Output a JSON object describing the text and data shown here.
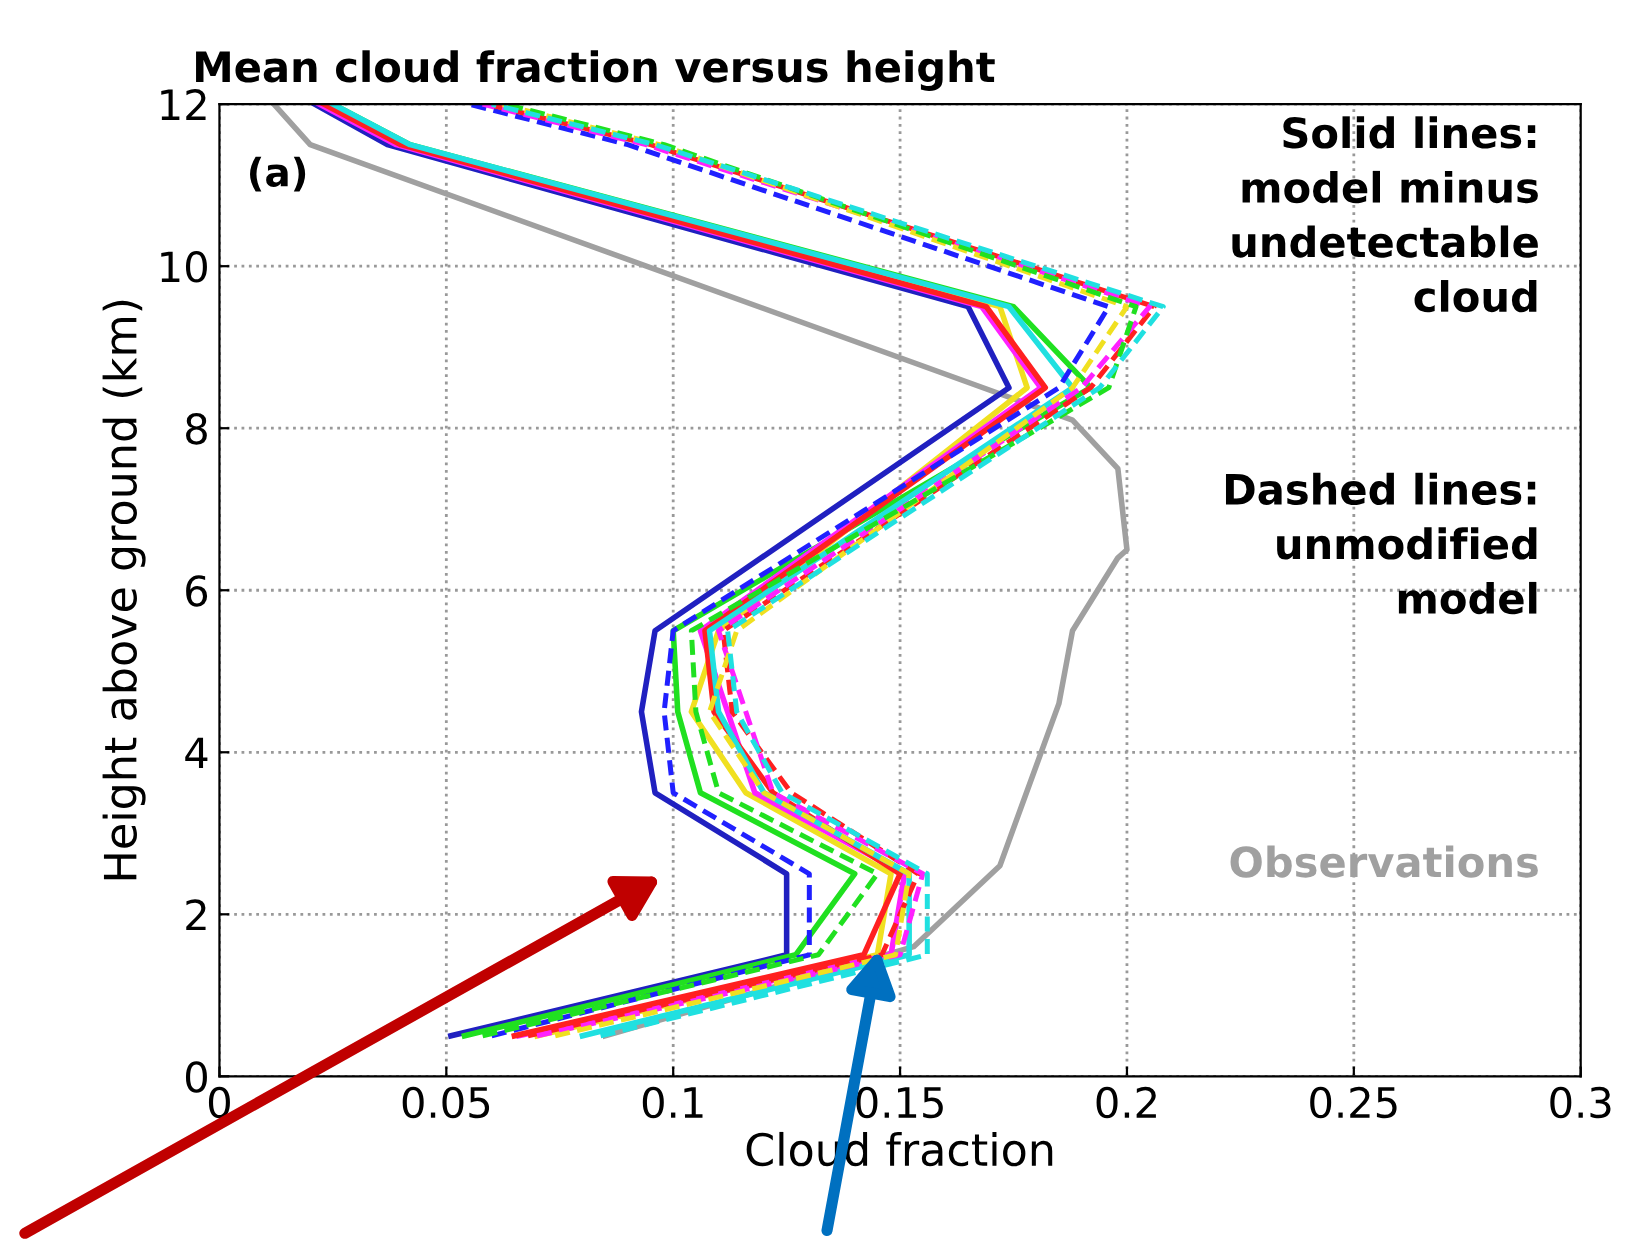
{
  "chart_data": {
    "type": "line",
    "title": "Mean cloud fraction versus height",
    "xlabel": "Cloud fraction",
    "ylabel": "Height above ground (km)",
    "xlim": [
      0,
      0.3
    ],
    "xticks": [
      0,
      0.05,
      0.1,
      0.15,
      0.2,
      0.25,
      0.3
    ],
    "ylim": [
      0,
      12
    ],
    "yticks": [
      0,
      2,
      4,
      6,
      8,
      10,
      12
    ],
    "grid": true,
    "legend": false,
    "annotations": [
      "(a)",
      "Solid lines:\nmodel minus\nundetectable\ncloud",
      "Dashed lines:\nunmodified\nmodel",
      "Observations"
    ],
    "series": [
      {
        "color": "#a0a0a0",
        "line_style": "solid",
        "x": [
          0.085,
          0.153,
          0.172,
          0.185,
          0.188,
          0.198,
          0.2,
          0.198,
          0.188,
          0.02,
          0.012
        ],
        "values": [
          0.5,
          1.6,
          2.6,
          4.6,
          5.5,
          6.4,
          6.5,
          7.5,
          8.1,
          11.5,
          12
        ]
      },
      {
        "color": "#2020c0",
        "line_style": "solid",
        "x": [
          0.051,
          0.125,
          0.125,
          0.096,
          0.093,
          0.096,
          0.174,
          0.165,
          0.037,
          0.021
        ],
        "values": [
          0.5,
          1.5,
          2.5,
          3.5,
          4.5,
          5.5,
          8.5,
          9.5,
          11.5,
          12
        ]
      },
      {
        "color": "#20e020",
        "line_style": "solid",
        "x": [
          0.054,
          0.127,
          0.14,
          0.106,
          0.101,
          0.1,
          0.192,
          0.175,
          0.042,
          0.025
        ],
        "values": [
          0.5,
          1.5,
          2.5,
          3.5,
          4.5,
          5.5,
          8.5,
          9.5,
          11.5,
          12
        ]
      },
      {
        "color": "#f0e020",
        "line_style": "solid",
        "x": [
          0.07,
          0.145,
          0.148,
          0.116,
          0.104,
          0.11,
          0.178,
          0.172,
          0.041,
          0.024
        ],
        "values": [
          0.5,
          1.5,
          2.5,
          3.5,
          4.5,
          5.5,
          8.5,
          9.5,
          11.5,
          12
        ]
      },
      {
        "color": "#ff20ff",
        "line_style": "solid",
        "x": [
          0.066,
          0.148,
          0.151,
          0.118,
          0.112,
          0.106,
          0.181,
          0.168,
          0.039,
          0.022
        ],
        "values": [
          0.5,
          1.5,
          2.5,
          3.5,
          4.5,
          5.5,
          8.5,
          9.5,
          11.5,
          12
        ]
      },
      {
        "color": "#ff2020",
        "line_style": "solid",
        "x": [
          0.065,
          0.142,
          0.15,
          0.122,
          0.109,
          0.107,
          0.182,
          0.169,
          0.04,
          0.023
        ],
        "values": [
          0.5,
          1.5,
          2.5,
          3.5,
          4.5,
          5.5,
          8.5,
          9.5,
          11.5,
          12
        ]
      },
      {
        "color": "#20e0e0",
        "line_style": "solid",
        "x": [
          0.08,
          0.152,
          0.152,
          0.12,
          0.11,
          0.108,
          0.188,
          0.174,
          0.042,
          0.025
        ],
        "values": [
          0.5,
          1.5,
          2.5,
          3.5,
          4.5,
          5.5,
          8.5,
          9.5,
          11.5,
          12
        ]
      },
      {
        "color": "#2020ff",
        "line_style": "dashed",
        "x": [
          0.06,
          0.13,
          0.13,
          0.1,
          0.098,
          0.1,
          0.185,
          0.196,
          0.09,
          0.055
        ],
        "values": [
          0.5,
          1.5,
          2.5,
          3.5,
          4.5,
          5.5,
          8.5,
          9.5,
          11.5,
          12
        ]
      },
      {
        "color": "#ff2020",
        "line_style": "dashed",
        "x": [
          0.068,
          0.146,
          0.154,
          0.126,
          0.113,
          0.111,
          0.192,
          0.206,
          0.095,
          0.059
        ],
        "values": [
          0.5,
          1.5,
          2.5,
          3.5,
          4.5,
          5.5,
          8.5,
          9.5,
          11.5,
          12
        ]
      },
      {
        "color": "#ff20ff",
        "line_style": "dashed",
        "x": [
          0.07,
          0.15,
          0.155,
          0.122,
          0.116,
          0.11,
          0.19,
          0.205,
          0.094,
          0.058
        ],
        "values": [
          0.5,
          1.5,
          2.5,
          3.5,
          4.5,
          5.5,
          8.5,
          9.5,
          11.5,
          12
        ]
      },
      {
        "color": "#f0e020",
        "line_style": "dashed",
        "x": [
          0.074,
          0.149,
          0.152,
          0.12,
          0.108,
          0.114,
          0.188,
          0.2,
          0.097,
          0.062
        ],
        "values": [
          0.5,
          1.5,
          2.5,
          3.5,
          4.5,
          5.5,
          8.5,
          9.5,
          11.5,
          12
        ]
      },
      {
        "color": "#20e020",
        "line_style": "dashed",
        "x": [
          0.058,
          0.132,
          0.145,
          0.11,
          0.105,
          0.104,
          0.196,
          0.202,
          0.098,
          0.063
        ],
        "values": [
          0.5,
          1.5,
          2.5,
          3.5,
          4.5,
          5.5,
          8.5,
          9.5,
          11.5,
          12
        ]
      },
      {
        "color": "#20e0e0",
        "line_style": "dashed",
        "x": [
          0.084,
          0.156,
          0.156,
          0.124,
          0.114,
          0.112,
          0.194,
          0.208,
          0.096,
          0.06
        ],
        "values": [
          0.5,
          1.5,
          2.5,
          3.5,
          4.5,
          5.5,
          8.5,
          9.5,
          11.5,
          12
        ]
      }
    ]
  }
}
